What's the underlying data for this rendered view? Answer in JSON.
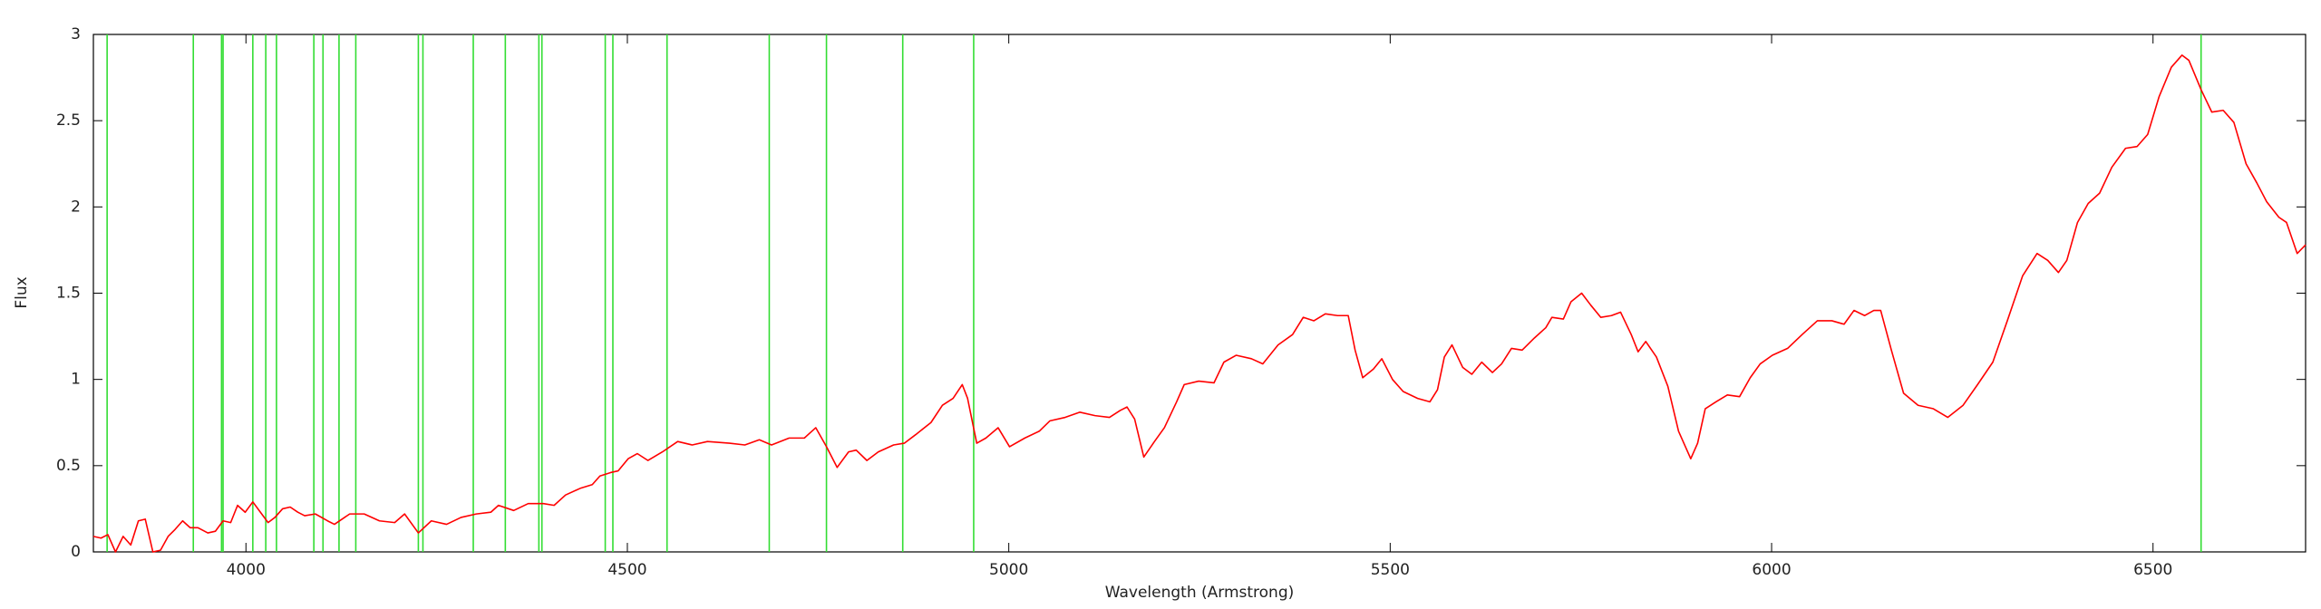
{
  "chart_data": {
    "type": "line",
    "xlabel": "Wavelength (Armstrong)",
    "ylabel": "Flux",
    "xlim": [
      3800,
      6700
    ],
    "ylim": [
      0,
      3
    ],
    "xticks": [
      4000,
      4500,
      5000,
      5500,
      6000,
      6500
    ],
    "yticks": [
      0,
      0.5,
      1,
      1.5,
      2,
      2.5,
      3
    ],
    "grid": false,
    "x": [
      3800,
      3810,
      3819,
      3829,
      3839,
      3849,
      3859,
      3868,
      3878,
      3888,
      3898,
      3907,
      3917,
      3927,
      3937,
      3950,
      3960,
      3970,
      3980,
      3989,
      3999,
      4009,
      4019,
      4029,
      4038,
      4048,
      4058,
      4068,
      4077,
      4091,
      4107,
      4116,
      4136,
      4155,
      4175,
      4195,
      4208,
      4226,
      4243,
      4263,
      4282,
      4302,
      4321,
      4331,
      4351,
      4370,
      4390,
      4404,
      4419,
      4439,
      4454,
      4464,
      4478,
      4488,
      4501,
      4513,
      4527,
      4546,
      4566,
      4585,
      4605,
      4634,
      4654,
      4673,
      4689,
      4712,
      4732,
      4747,
      4761,
      4775,
      4790,
      4800,
      4814,
      4829,
      4849,
      4863,
      4878,
      4898,
      4913,
      4927,
      4939,
      4946,
      4958,
      4970,
      4986,
      5001,
      5021,
      5040,
      5054,
      5074,
      5093,
      5113,
      5132,
      5146,
      5155,
      5165,
      5177,
      5191,
      5204,
      5220,
      5230,
      5249,
      5269,
      5282,
      5298,
      5318,
      5333,
      5353,
      5372,
      5386,
      5400,
      5415,
      5431,
      5445,
      5454,
      5464,
      5478,
      5489,
      5503,
      5517,
      5536,
      5552,
      5562,
      5571,
      5581,
      5595,
      5607,
      5620,
      5634,
      5646,
      5659,
      5673,
      5689,
      5704,
      5712,
      5727,
      5737,
      5751,
      5763,
      5776,
      5790,
      5802,
      5816,
      5825,
      5835,
      5849,
      5864,
      5878,
      5894,
      5903,
      5913,
      5927,
      5942,
      5958,
      5972,
      5985,
      6001,
      6021,
      6040,
      6060,
      6079,
      6095,
      6108,
      6122,
      6134,
      6143,
      6157,
      6173,
      6192,
      6212,
      6231,
      6251,
      6270,
      6290,
      6309,
      6329,
      6348,
      6362,
      6376,
      6387,
      6401,
      6415,
      6430,
      6446,
      6464,
      6479,
      6493,
      6508,
      6524,
      6538,
      6547,
      6563,
      6577,
      6592,
      6606,
      6622,
      6636,
      6649,
      6665,
      6675,
      6689,
      6700
    ],
    "series": [
      {
        "color": "#ff0000",
        "values": [
          0.09,
          0.08,
          0.1,
          0.0,
          0.09,
          0.04,
          0.18,
          0.19,
          0.0,
          0.01,
          0.09,
          0.13,
          0.18,
          0.14,
          0.14,
          0.11,
          0.12,
          0.18,
          0.17,
          0.27,
          0.23,
          0.29,
          0.23,
          0.17,
          0.2,
          0.25,
          0.26,
          0.23,
          0.21,
          0.22,
          0.18,
          0.16,
          0.22,
          0.22,
          0.18,
          0.17,
          0.22,
          0.11,
          0.18,
          0.16,
          0.2,
          0.22,
          0.23,
          0.27,
          0.24,
          0.28,
          0.28,
          0.27,
          0.33,
          0.37,
          0.39,
          0.44,
          0.46,
          0.47,
          0.54,
          0.57,
          0.53,
          0.58,
          0.64,
          0.62,
          0.64,
          0.63,
          0.62,
          0.65,
          0.62,
          0.66,
          0.66,
          0.72,
          0.61,
          0.49,
          0.58,
          0.59,
          0.53,
          0.58,
          0.62,
          0.63,
          0.68,
          0.75,
          0.85,
          0.89,
          0.97,
          0.89,
          0.63,
          0.66,
          0.72,
          0.61,
          0.66,
          0.7,
          0.76,
          0.78,
          0.81,
          0.79,
          0.78,
          0.82,
          0.84,
          0.77,
          0.55,
          0.64,
          0.72,
          0.87,
          0.97,
          0.99,
          0.98,
          1.1,
          1.14,
          1.12,
          1.09,
          1.2,
          1.26,
          1.36,
          1.34,
          1.38,
          1.37,
          1.37,
          1.17,
          1.01,
          1.06,
          1.12,
          1.0,
          0.93,
          0.89,
          0.87,
          0.94,
          1.13,
          1.2,
          1.07,
          1.03,
          1.1,
          1.04,
          1.09,
          1.18,
          1.17,
          1.24,
          1.3,
          1.36,
          1.35,
          1.45,
          1.5,
          1.43,
          1.36,
          1.37,
          1.39,
          1.26,
          1.16,
          1.22,
          1.13,
          0.96,
          0.7,
          0.54,
          0.63,
          0.83,
          0.87,
          0.91,
          0.9,
          1.01,
          1.09,
          1.14,
          1.18,
          1.26,
          1.34,
          1.34,
          1.32,
          1.4,
          1.37,
          1.4,
          1.4,
          1.17,
          0.92,
          0.85,
          0.83,
          0.78,
          0.85,
          0.97,
          1.1,
          1.34,
          1.6,
          1.73,
          1.69,
          1.62,
          1.69,
          1.91,
          2.02,
          2.08,
          2.23,
          2.34,
          2.35,
          2.42,
          2.64,
          2.81,
          2.88,
          2.85,
          2.68,
          2.55,
          2.56,
          2.49,
          2.25,
          2.14,
          2.03,
          1.94,
          1.91,
          1.73,
          1.78
        ]
      }
    ],
    "vlines": [
      3818,
      3931,
      3968,
      3970,
      4009,
      4026,
      4040,
      4089,
      4101,
      4122,
      4144,
      4226,
      4232,
      4298,
      4340,
      4384,
      4388,
      4471,
      4481,
      4552,
      4686,
      4761,
      4861,
      4954,
      6563
    ],
    "vline_color": "#33dd33"
  }
}
